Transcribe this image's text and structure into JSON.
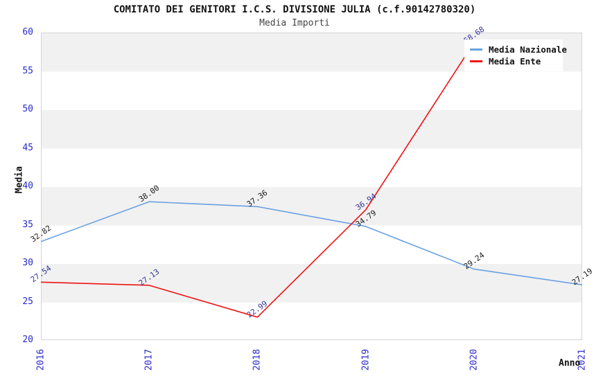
{
  "colors": {
    "band_gray": "#f1f1f1",
    "plot_border": "#d4d4d4",
    "axis_tick_label": "#2929cc",
    "nazionale_line": "#69a1e0",
    "ente_line": "#ee1111",
    "nazionale_point_label": "#1a1a1a",
    "ente_point_label": "#333399"
  },
  "chart_data": {
    "type": "line",
    "title": "COMITATO DEI GENITORI I.C.S. DIVISIONE JULIA (c.f.90142780320)",
    "subtitle": "Media Importi",
    "xlabel": "Anno",
    "ylabel": "Media",
    "x": [
      "2016",
      "2017",
      "2018",
      "2019",
      "2020",
      "2021"
    ],
    "ylim": [
      20,
      60
    ],
    "ytick_step": 5,
    "grid": "alternating horizontal gray/white bands every 5 units",
    "legend_position": "top-right",
    "series": [
      {
        "name": "Media Nazionale",
        "color": "#69a1e0",
        "label_color": "#1a1a1a",
        "values": [
          32.82,
          38.0,
          37.36,
          34.79,
          29.24,
          27.19
        ],
        "point_labels": [
          "32.82",
          "38.00",
          "37.36",
          "34.79",
          "29.24",
          "27.19"
        ]
      },
      {
        "name": "Media Ente",
        "color": "#ee1111",
        "label_color": "#333399",
        "values": [
          27.54,
          27.13,
          22.99,
          36.94,
          58.68,
          null
        ],
        "point_labels": [
          "27.54",
          "27.13",
          "22.99",
          "36.94",
          "58.68",
          ""
        ]
      }
    ]
  }
}
